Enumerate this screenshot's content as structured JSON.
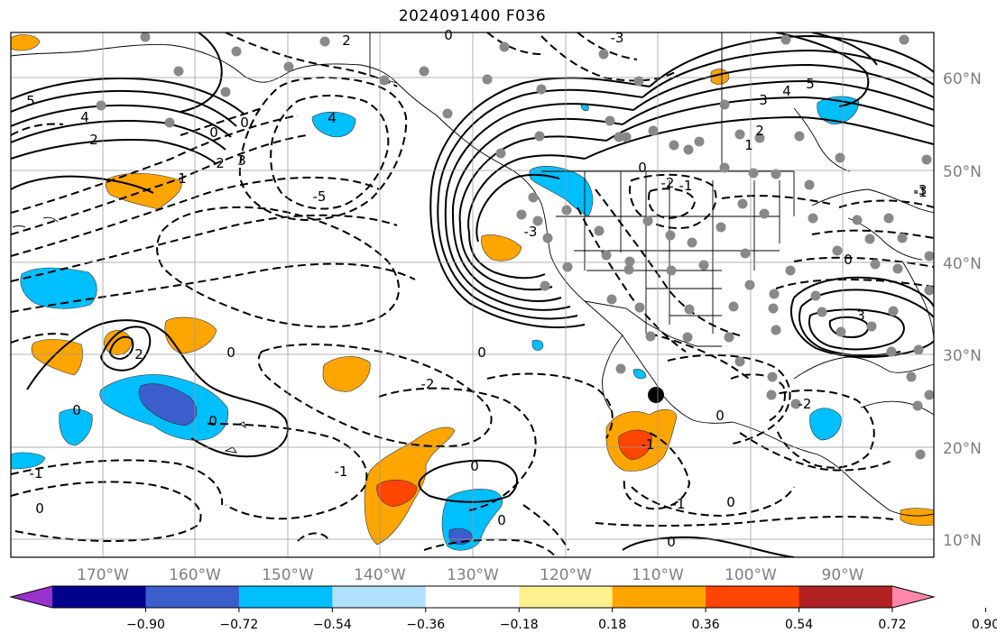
{
  "title": "2024091400 F036",
  "lon_ticks": [
    "170°W",
    "160°W",
    "150°W",
    "140°W",
    "130°W",
    "120°W",
    "110°W",
    "100°W",
    "90°W"
  ],
  "lat_ticks": [
    "60°N",
    "50°N",
    "40°N",
    "30°N",
    "20°N",
    "10°N"
  ],
  "colorbar": {
    "ticks": [
      "−0.90",
      "−0.72",
      "−0.54",
      "−0.36",
      "−0.18",
      "0.18",
      "0.36",
      "0.54",
      "0.72",
      "0.90"
    ],
    "colors": [
      "#9932cc",
      "#00008b",
      "#3a5fcd",
      "#00bfff",
      "#b0e2ff",
      "#ffffff",
      "#fff08f",
      "#ffa500",
      "#ff4500",
      "#b22222",
      "#ff88aa"
    ]
  },
  "contour_labels": [
    {
      "t": "2"
    },
    {
      "t": "0"
    },
    {
      "t": "-3"
    },
    {
      "t": "-1"
    },
    {
      "t": "5"
    },
    {
      "t": "4"
    },
    {
      "t": "2"
    },
    {
      "t": "0"
    },
    {
      "t": "0"
    },
    {
      "t": "4"
    },
    {
      "t": "1"
    },
    {
      "t": "2"
    },
    {
      "t": "3"
    },
    {
      "t": "-5"
    },
    {
      "t": "3"
    },
    {
      "t": "4"
    },
    {
      "t": "5"
    },
    {
      "t": "2"
    },
    {
      "t": "1"
    },
    {
      "t": "0"
    },
    {
      "t": "-1"
    },
    {
      "t": "-3"
    },
    {
      "t": "2"
    },
    {
      "t": "2"
    },
    {
      "t": "0"
    },
    {
      "t": "0"
    },
    {
      "t": "-2"
    },
    {
      "t": "0"
    },
    {
      "t": "-1"
    },
    {
      "t": "0"
    },
    {
      "t": "0"
    },
    {
      "t": "-1"
    },
    {
      "t": "0"
    },
    {
      "t": "0"
    },
    {
      "t": "-1"
    },
    {
      "t": "-1"
    },
    {
      "t": "0"
    },
    {
      "t": "0"
    },
    {
      "t": "0"
    },
    {
      "t": "-2"
    },
    {
      "t": "3"
    },
    {
      "t": "-3"
    },
    {
      "t": "-2"
    },
    {
      "t": "0"
    }
  ]
}
